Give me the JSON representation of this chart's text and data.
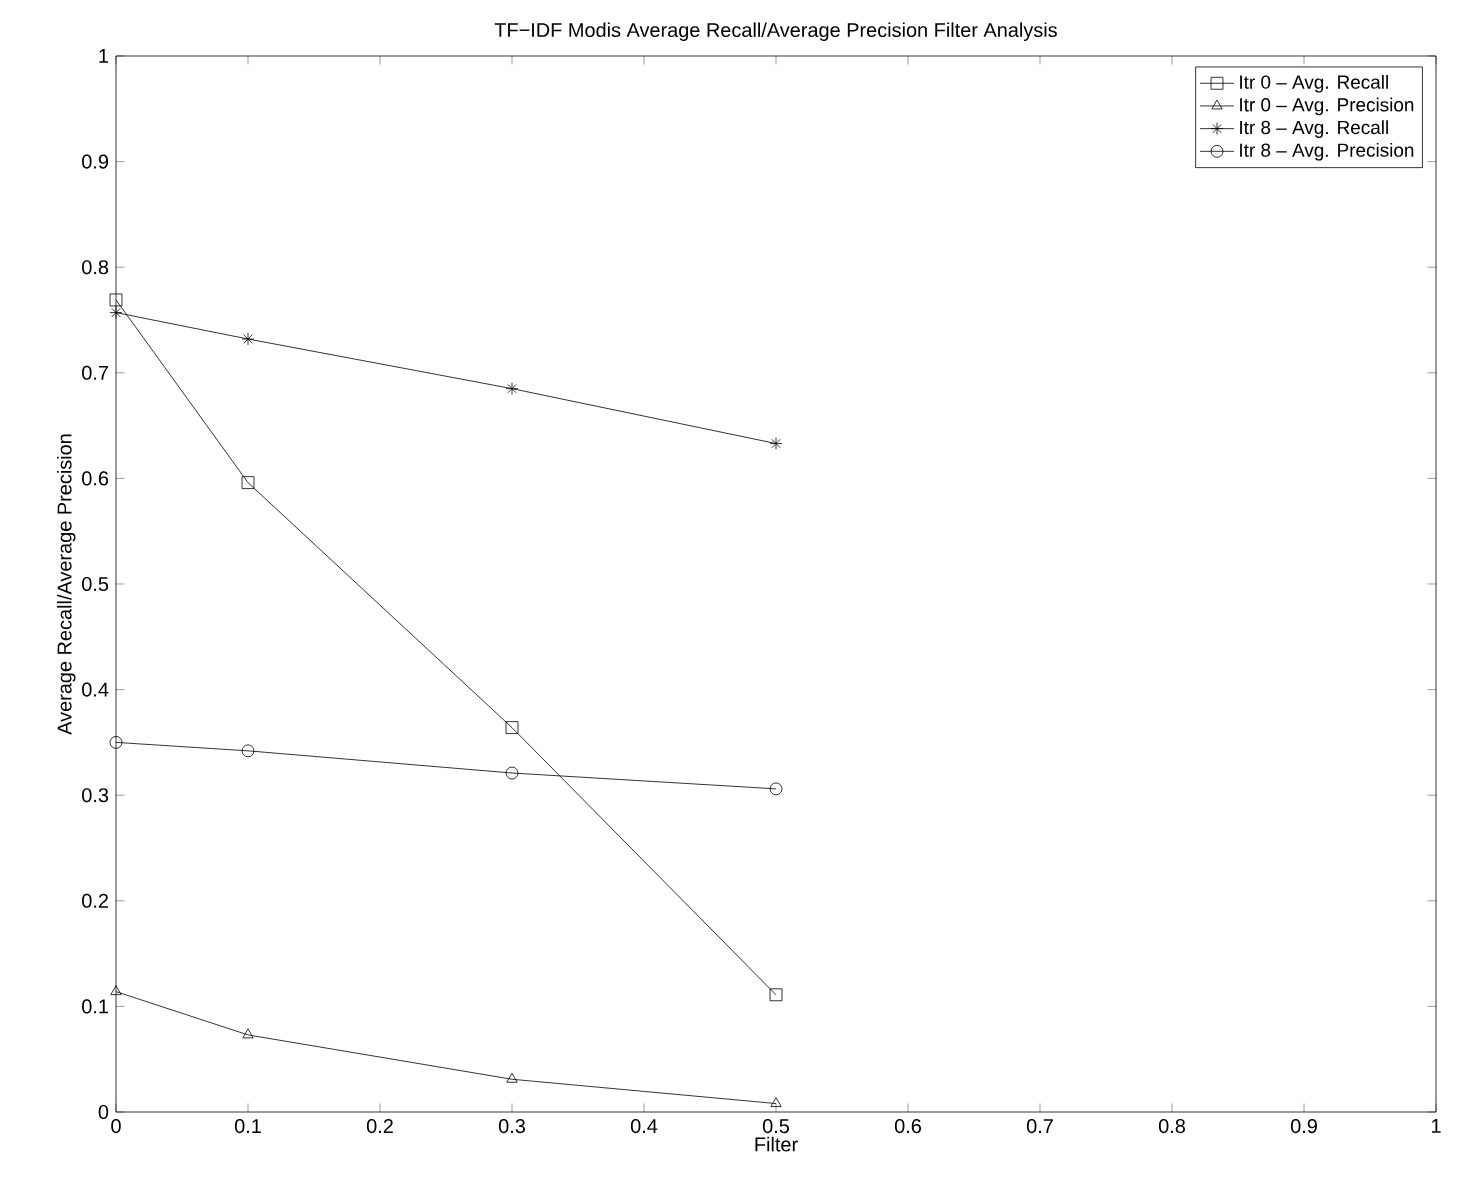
{
  "chart_data": {
    "type": "line",
    "title": "TF−IDF Modis Average Recall/Average Precision Filter Analysis",
    "xlabel": "Filter",
    "ylabel": "Average Recall/Average Precision",
    "x": [
      0,
      0.1,
      0.3,
      0.5
    ],
    "series": [
      {
        "name": "Itr 0 – Avg. Recall",
        "color": "#000000",
        "marker": "square",
        "values": [
          0.769,
          0.596,
          0.364,
          0.111
        ]
      },
      {
        "name": "Itr 0 – Avg. Precision",
        "color": "#000000",
        "marker": "triangle",
        "values": [
          0.114,
          0.073,
          0.031,
          0.008
        ]
      },
      {
        "name": "Itr 8 – Avg. Recall",
        "color": "#000000",
        "marker": "cross",
        "values": [
          0.757,
          0.732,
          0.685,
          0.633
        ]
      },
      {
        "name": "Itr 8 – Avg. Precision",
        "color": "#000000",
        "marker": "circle",
        "values": [
          0.35,
          0.342,
          0.321,
          0.306
        ]
      }
    ],
    "xlim": [
      0,
      1
    ],
    "ylim": [
      0,
      1
    ],
    "xticks": [
      0,
      0.1,
      0.2,
      0.3,
      0.4,
      0.5,
      0.6,
      0.7,
      0.8,
      0.9,
      1
    ],
    "yticks": [
      0,
      0.1,
      0.2,
      0.3,
      0.4,
      0.5,
      0.6,
      0.7,
      0.8,
      0.9,
      1
    ],
    "grid": false,
    "legend": "top right",
    "line_style": "solid"
  }
}
